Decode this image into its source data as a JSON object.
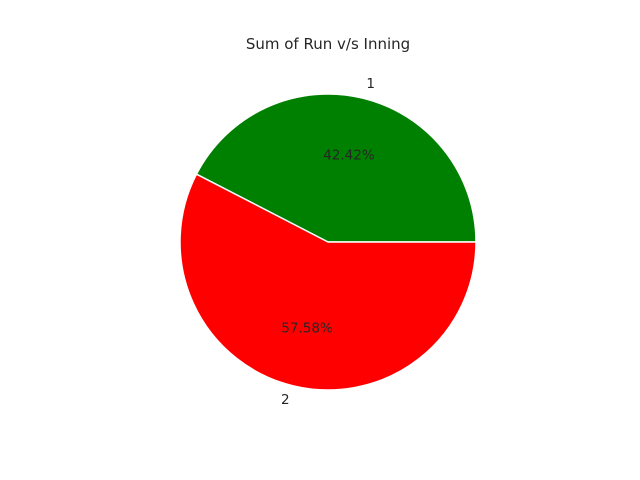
{
  "chart_data": {
    "type": "pie",
    "title": "Sum of Run v/s Inning",
    "slices": [
      {
        "label": "1",
        "value": 42.42,
        "pct_label": "42.42%",
        "color": "#008000"
      },
      {
        "label": "2",
        "value": 57.58,
        "pct_label": "57.58%",
        "color": "#ff0000"
      }
    ],
    "start_angle_deg": 0,
    "direction": "counterclockwise",
    "edge_color": "#ffffff"
  }
}
